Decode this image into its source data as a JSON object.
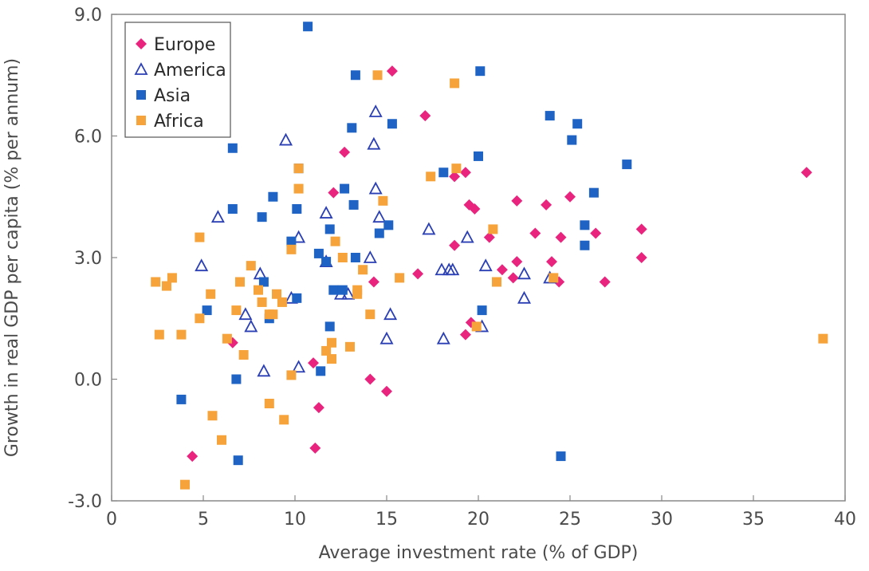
{
  "chart_data": {
    "type": "scatter",
    "title": "",
    "xlabel": "Average investment rate (% of GDP)",
    "ylabel": "Growth in real GDP per capita (% per annum)",
    "xlim": [
      0,
      40
    ],
    "ylim": [
      -3.0,
      9.0
    ],
    "x_ticks": [
      "0",
      "5",
      "10",
      "15",
      "20",
      "25",
      "30",
      "35",
      "40"
    ],
    "y_ticks": [
      "-3.0",
      "0.0",
      "3.0",
      "6.0",
      "9.0"
    ],
    "grid": false,
    "legend_position": "top-left",
    "series": [
      {
        "name": "Europe",
        "marker": "diamond",
        "color": "#e8247e",
        "points": [
          [
            15.3,
            7.6
          ],
          [
            17.1,
            6.5
          ],
          [
            12.7,
            5.6
          ],
          [
            19.3,
            5.1
          ],
          [
            18.7,
            5.0
          ],
          [
            12.1,
            4.6
          ],
          [
            19.5,
            4.3
          ],
          [
            19.8,
            4.2
          ],
          [
            22.1,
            4.4
          ],
          [
            23.7,
            4.3
          ],
          [
            25.0,
            4.5
          ],
          [
            20.6,
            3.5
          ],
          [
            23.1,
            3.6
          ],
          [
            24.5,
            3.5
          ],
          [
            26.4,
            3.6
          ],
          [
            28.9,
            3.7
          ],
          [
            37.9,
            5.1
          ],
          [
            18.7,
            3.3
          ],
          [
            21.3,
            2.7
          ],
          [
            22.1,
            2.9
          ],
          [
            24.0,
            2.9
          ],
          [
            28.9,
            3.0
          ],
          [
            16.7,
            2.6
          ],
          [
            14.3,
            2.4
          ],
          [
            21.9,
            2.5
          ],
          [
            24.4,
            2.4
          ],
          [
            26.9,
            2.4
          ],
          [
            19.3,
            1.1
          ],
          [
            19.6,
            1.4
          ],
          [
            6.6,
            0.9
          ],
          [
            11.0,
            0.4
          ],
          [
            14.1,
            0.0
          ],
          [
            15.0,
            -0.3
          ],
          [
            11.3,
            -0.7
          ],
          [
            4.4,
            -1.9
          ],
          [
            11.1,
            -1.7
          ]
        ]
      },
      {
        "name": "America",
        "marker": "triangle",
        "color": "#2b3fb5",
        "points": [
          [
            14.4,
            6.6
          ],
          [
            9.5,
            5.9
          ],
          [
            14.3,
            5.8
          ],
          [
            14.4,
            4.7
          ],
          [
            5.8,
            4.0
          ],
          [
            11.7,
            4.1
          ],
          [
            14.6,
            4.0
          ],
          [
            17.3,
            3.7
          ],
          [
            10.2,
            3.5
          ],
          [
            19.4,
            3.5
          ],
          [
            4.9,
            2.8
          ],
          [
            11.7,
            2.9
          ],
          [
            14.1,
            3.0
          ],
          [
            18.0,
            2.7
          ],
          [
            18.4,
            2.7
          ],
          [
            18.6,
            2.7
          ],
          [
            20.4,
            2.8
          ],
          [
            8.1,
            2.6
          ],
          [
            12.5,
            2.1
          ],
          [
            12.9,
            2.1
          ],
          [
            22.5,
            2.6
          ],
          [
            7.3,
            1.6
          ],
          [
            7.6,
            1.3
          ],
          [
            9.8,
            2.0
          ],
          [
            22.5,
            2.0
          ],
          [
            15.2,
            1.6
          ],
          [
            20.2,
            1.3
          ],
          [
            15.0,
            1.0
          ],
          [
            18.1,
            1.0
          ],
          [
            8.3,
            0.2
          ],
          [
            10.2,
            0.3
          ],
          [
            23.9,
            2.5
          ]
        ]
      },
      {
        "name": "Asia",
        "marker": "square",
        "color": "#1f63c4",
        "points": [
          [
            10.7,
            8.7
          ],
          [
            13.3,
            7.5
          ],
          [
            20.1,
            7.6
          ],
          [
            13.1,
            6.2
          ],
          [
            15.3,
            6.3
          ],
          [
            6.6,
            5.7
          ],
          [
            10.2,
            5.2
          ],
          [
            23.9,
            6.5
          ],
          [
            25.4,
            6.3
          ],
          [
            25.1,
            5.9
          ],
          [
            28.1,
            5.3
          ],
          [
            20.0,
            5.5
          ],
          [
            18.1,
            5.1
          ],
          [
            6.6,
            4.2
          ],
          [
            8.2,
            4.0
          ],
          [
            8.8,
            4.5
          ],
          [
            10.1,
            4.2
          ],
          [
            12.7,
            4.7
          ],
          [
            13.2,
            4.3
          ],
          [
            26.3,
            4.6
          ],
          [
            9.8,
            3.4
          ],
          [
            11.9,
            3.7
          ],
          [
            14.6,
            3.6
          ],
          [
            15.1,
            3.8
          ],
          [
            25.8,
            3.8
          ],
          [
            25.8,
            3.3
          ],
          [
            11.3,
            3.1
          ],
          [
            11.7,
            2.9
          ],
          [
            13.3,
            3.0
          ],
          [
            8.3,
            2.4
          ],
          [
            12.1,
            2.2
          ],
          [
            12.6,
            2.2
          ],
          [
            5.2,
            1.7
          ],
          [
            8.6,
            1.5
          ],
          [
            10.1,
            2.0
          ],
          [
            20.2,
            1.7
          ],
          [
            11.9,
            1.3
          ],
          [
            11.4,
            0.2
          ],
          [
            6.8,
            0.0
          ],
          [
            3.8,
            -0.5
          ],
          [
            6.9,
            -2.0
          ],
          [
            24.5,
            -1.9
          ]
        ]
      },
      {
        "name": "Africa",
        "marker": "square",
        "color": "#f5a33a",
        "points": [
          [
            14.5,
            7.5
          ],
          [
            18.7,
            7.3
          ],
          [
            10.2,
            5.2
          ],
          [
            17.4,
            5.0
          ],
          [
            18.8,
            5.2
          ],
          [
            10.2,
            4.7
          ],
          [
            14.8,
            4.4
          ],
          [
            20.8,
            3.7
          ],
          [
            4.8,
            3.5
          ],
          [
            9.8,
            3.2
          ],
          [
            12.2,
            3.4
          ],
          [
            7.6,
            2.8
          ],
          [
            12.6,
            3.0
          ],
          [
            13.7,
            2.7
          ],
          [
            15.7,
            2.5
          ],
          [
            2.4,
            2.4
          ],
          [
            3.0,
            2.3
          ],
          [
            3.3,
            2.5
          ],
          [
            5.4,
            2.1
          ],
          [
            7.0,
            2.4
          ],
          [
            8.0,
            2.2
          ],
          [
            8.2,
            1.9
          ],
          [
            9.0,
            2.1
          ],
          [
            9.3,
            1.9
          ],
          [
            13.4,
            2.2
          ],
          [
            13.4,
            2.1
          ],
          [
            21.0,
            2.4
          ],
          [
            24.1,
            2.5
          ],
          [
            4.8,
            1.5
          ],
          [
            6.8,
            1.7
          ],
          [
            8.6,
            1.6
          ],
          [
            8.8,
            1.6
          ],
          [
            14.1,
            1.6
          ],
          [
            19.9,
            1.3
          ],
          [
            2.6,
            1.1
          ],
          [
            3.8,
            1.1
          ],
          [
            6.3,
            1.0
          ],
          [
            11.7,
            0.7
          ],
          [
            12.0,
            0.9
          ],
          [
            13.0,
            0.8
          ],
          [
            7.2,
            0.6
          ],
          [
            12.0,
            0.5
          ],
          [
            9.8,
            0.1
          ],
          [
            5.5,
            -0.9
          ],
          [
            8.6,
            -0.6
          ],
          [
            9.4,
            -1.0
          ],
          [
            6.0,
            -1.5
          ],
          [
            4.0,
            -2.6
          ],
          [
            38.8,
            1.0
          ]
        ]
      }
    ]
  }
}
